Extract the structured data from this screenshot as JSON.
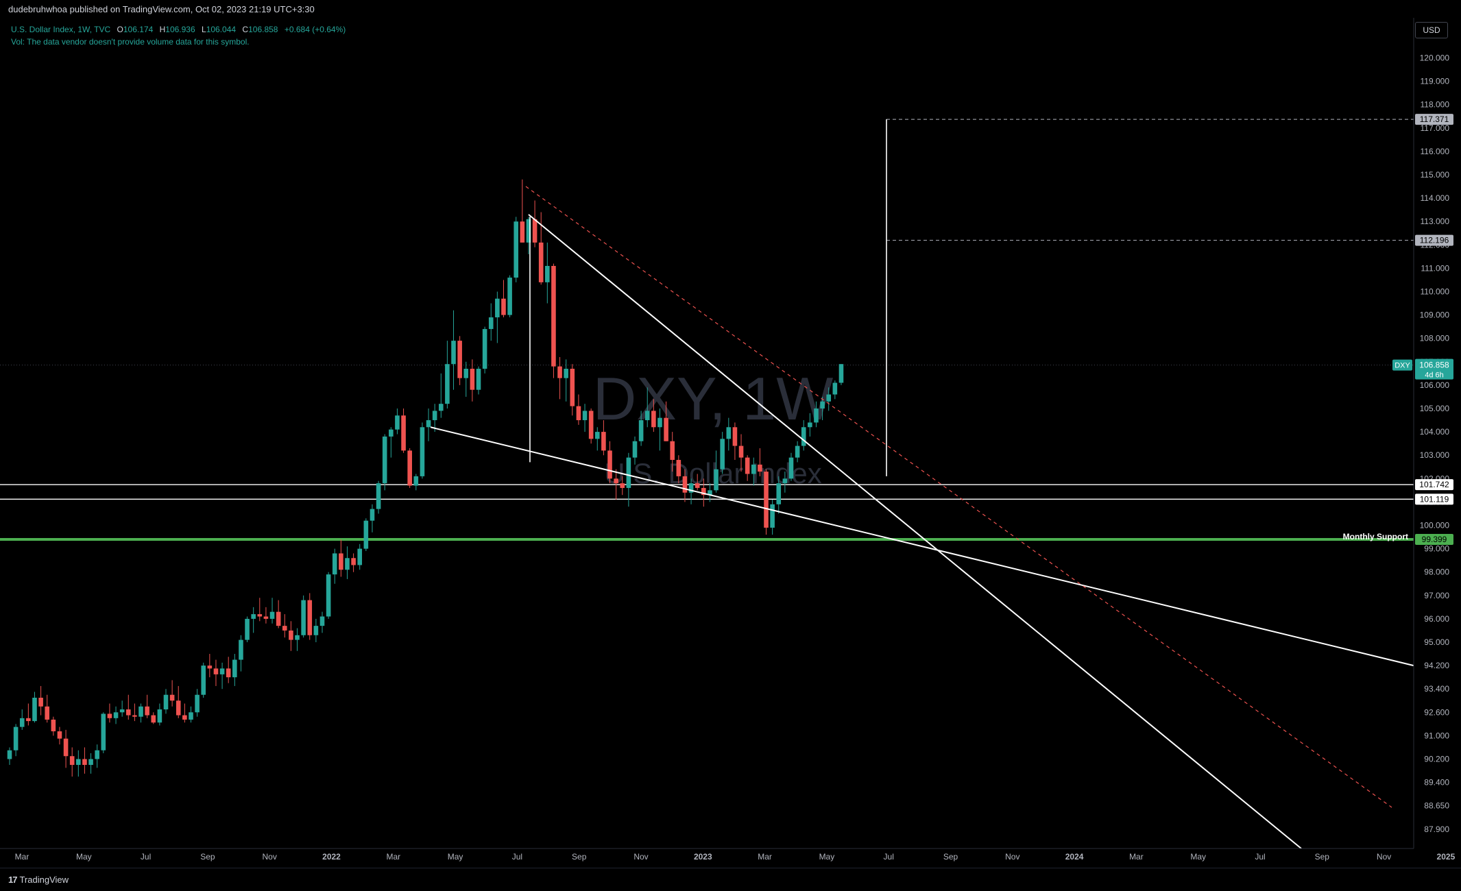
{
  "topbar": {
    "publisher": "dudebruhwhoa published on TradingView.com, Oct 02, 2023 21:19 UTC+3:30"
  },
  "legend": {
    "symbol": "U.S. Dollar Index, 1W, TVC",
    "open_label": "O",
    "open": "106.174",
    "high_label": "H",
    "high": "106.936",
    "low_label": "L",
    "low": "106.044",
    "close_label": "C",
    "close": "106.858",
    "change": "+0.684 (+0.64%)",
    "vol_note": "Vol: The data vendor doesn't provide volume data for this symbol."
  },
  "watermark": {
    "main": "DXY, 1W",
    "sub": "U.S. Dollar Index"
  },
  "currency_button": "USD",
  "footer": {
    "logo_text": "TradingView",
    "logo_mark": "17"
  },
  "colors": {
    "up": "#26a69a",
    "down": "#ef5350",
    "support": "#4caf50",
    "accent": "#26a69a"
  },
  "chart_data": {
    "type": "candlestick",
    "x_ticks": [
      "Mar",
      "May",
      "Jul",
      "Sep",
      "Nov",
      "2022",
      "Mar",
      "May",
      "Jul",
      "Sep",
      "Nov",
      "2023",
      "Mar",
      "May",
      "Jul",
      "Sep",
      "Nov",
      "2024",
      "Mar",
      "May",
      "Jul",
      "Sep",
      "Nov",
      "2025"
    ],
    "y_ticks": [
      "120.000",
      "119.000",
      "118.000",
      "117.000",
      "116.000",
      "115.000",
      "114.000",
      "113.000",
      "112.000",
      "111.000",
      "110.000",
      "109.000",
      "108.000",
      "107.000",
      "106.000",
      "105.000",
      "104.000",
      "103.000",
      "102.000",
      "101.000",
      "100.000",
      "99.000",
      "98.000",
      "97.000",
      "96.000",
      "95.000",
      "94.200",
      "93.400",
      "92.600",
      "91.000",
      "90.200",
      "89.400",
      "88.650",
      "87.900"
    ],
    "current_price": {
      "symbol": "DXY",
      "value": "106.858",
      "countdown": "4d 6h"
    },
    "price_labels": [
      "117.371",
      "112.196",
      "101.742",
      "101.119",
      "99.399"
    ],
    "annotation": "Monthly Support",
    "candles": [
      [
        90.2,
        90.6,
        90.0,
        90.5
      ],
      [
        90.5,
        91.8,
        90.3,
        91.6
      ],
      [
        91.6,
        92.7,
        91.4,
        92.2
      ],
      [
        92.2,
        92.9,
        91.7,
        92.0
      ],
      [
        92.0,
        93.3,
        91.9,
        93.1
      ],
      [
        93.1,
        93.5,
        92.4,
        92.8
      ],
      [
        92.8,
        93.2,
        91.9,
        92.1
      ],
      [
        92.1,
        92.3,
        91.0,
        91.3
      ],
      [
        91.3,
        91.6,
        90.7,
        90.9
      ],
      [
        90.9,
        91.4,
        89.9,
        90.3
      ],
      [
        90.3,
        90.6,
        89.6,
        90.0
      ],
      [
        90.0,
        90.5,
        89.6,
        90.2
      ],
      [
        90.2,
        90.6,
        89.7,
        90.0
      ],
      [
        90.0,
        90.4,
        89.7,
        90.2
      ],
      [
        90.2,
        90.7,
        89.9,
        90.5
      ],
      [
        90.5,
        92.6,
        90.4,
        92.5
      ],
      [
        92.5,
        92.9,
        91.9,
        92.2
      ],
      [
        92.2,
        92.8,
        91.8,
        92.6
      ],
      [
        92.6,
        93.0,
        92.3,
        92.7
      ],
      [
        92.7,
        93.2,
        92.1,
        92.4
      ],
      [
        92.4,
        92.9,
        92.0,
        92.3
      ],
      [
        92.3,
        92.9,
        91.9,
        92.8
      ],
      [
        92.8,
        93.2,
        92.2,
        92.4
      ],
      [
        92.4,
        92.6,
        91.8,
        91.9
      ],
      [
        91.9,
        92.9,
        91.7,
        92.7
      ],
      [
        92.7,
        93.4,
        92.5,
        93.2
      ],
      [
        93.2,
        93.7,
        92.8,
        93.0
      ],
      [
        93.0,
        93.5,
        92.2,
        92.4
      ],
      [
        92.4,
        92.9,
        91.9,
        92.1
      ],
      [
        92.1,
        92.8,
        91.9,
        92.6
      ],
      [
        92.6,
        93.4,
        92.3,
        93.2
      ],
      [
        93.2,
        94.3,
        93.1,
        94.2
      ],
      [
        94.2,
        94.6,
        93.8,
        94.1
      ],
      [
        94.1,
        94.4,
        93.5,
        93.9
      ],
      [
        93.9,
        94.3,
        93.4,
        94.1
      ],
      [
        94.1,
        94.5,
        93.6,
        93.8
      ],
      [
        93.8,
        94.6,
        93.5,
        94.4
      ],
      [
        94.4,
        95.3,
        94.0,
        95.1
      ],
      [
        95.1,
        96.1,
        95.0,
        96.0
      ],
      [
        96.0,
        96.5,
        95.4,
        96.2
      ],
      [
        96.2,
        96.9,
        95.9,
        96.1
      ],
      [
        96.1,
        96.5,
        95.8,
        96.0
      ],
      [
        96.0,
        96.9,
        95.8,
        96.3
      ],
      [
        96.3,
        96.8,
        95.6,
        95.7
      ],
      [
        95.7,
        96.2,
        95.2,
        95.5
      ],
      [
        95.5,
        95.9,
        94.7,
        95.1
      ],
      [
        95.1,
        95.6,
        94.7,
        95.3
      ],
      [
        95.3,
        97.0,
        95.2,
        96.8
      ],
      [
        96.8,
        97.1,
        95.1,
        95.3
      ],
      [
        95.3,
        96.0,
        95.0,
        95.7
      ],
      [
        95.7,
        96.3,
        95.4,
        96.1
      ],
      [
        96.1,
        98.0,
        96.0,
        97.9
      ],
      [
        97.9,
        99.0,
        97.5,
        98.8
      ],
      [
        98.8,
        99.4,
        97.8,
        98.1
      ],
      [
        98.1,
        99.1,
        97.7,
        98.6
      ],
      [
        98.6,
        98.8,
        98.0,
        98.3
      ],
      [
        98.3,
        99.2,
        98.1,
        99.0
      ],
      [
        99.0,
        100.3,
        98.9,
        100.2
      ],
      [
        100.2,
        100.9,
        99.7,
        100.7
      ],
      [
        100.7,
        101.9,
        100.5,
        101.8
      ],
      [
        101.8,
        103.9,
        101.5,
        103.8
      ],
      [
        103.8,
        104.2,
        102.9,
        104.1
      ],
      [
        104.1,
        105.0,
        103.9,
        104.7
      ],
      [
        104.7,
        105.0,
        103.1,
        103.2
      ],
      [
        103.2,
        103.3,
        101.6,
        101.7
      ],
      [
        101.7,
        102.2,
        101.5,
        102.1
      ],
      [
        102.1,
        104.4,
        102.0,
        104.2
      ],
      [
        104.2,
        105.0,
        103.6,
        104.5
      ],
      [
        104.5,
        105.2,
        104.0,
        104.9
      ],
      [
        104.9,
        106.5,
        104.6,
        105.2
      ],
      [
        105.2,
        107.9,
        105.0,
        106.9
      ],
      [
        106.9,
        109.2,
        105.8,
        107.9
      ],
      [
        107.9,
        108.1,
        106.0,
        106.3
      ],
      [
        106.3,
        107.0,
        105.5,
        106.7
      ],
      [
        106.7,
        107.1,
        105.3,
        105.8
      ],
      [
        105.8,
        106.8,
        105.6,
        106.7
      ],
      [
        106.7,
        108.5,
        106.5,
        108.4
      ],
      [
        108.4,
        109.5,
        107.9,
        108.9
      ],
      [
        108.9,
        110.0,
        107.8,
        109.7
      ],
      [
        109.7,
        110.5,
        108.9,
        109.0
      ],
      [
        109.0,
        110.7,
        108.9,
        110.6
      ],
      [
        110.6,
        113.2,
        110.4,
        113.0
      ],
      [
        113.0,
        114.8,
        112.1,
        112.1
      ],
      [
        112.1,
        113.2,
        111.6,
        113.1
      ],
      [
        113.1,
        113.9,
        111.9,
        112.1
      ],
      [
        112.1,
        113.4,
        110.3,
        110.4
      ],
      [
        110.4,
        112.1,
        109.5,
        111.1
      ],
      [
        111.1,
        111.2,
        106.3,
        106.8
      ],
      [
        106.8,
        107.2,
        105.4,
        106.3
      ],
      [
        106.3,
        107.1,
        105.3,
        106.7
      ],
      [
        106.7,
        106.9,
        104.7,
        105.1
      ],
      [
        105.1,
        105.6,
        104.3,
        104.5
      ],
      [
        104.5,
        105.2,
        104.0,
        104.9
      ],
      [
        104.9,
        105.0,
        103.5,
        103.7
      ],
      [
        103.7,
        104.2,
        103.2,
        104.0
      ],
      [
        104.0,
        104.5,
        103.0,
        103.2
      ],
      [
        103.2,
        103.6,
        101.8,
        102.0
      ],
      [
        102.0,
        102.4,
        101.1,
        101.8
      ],
      [
        101.8,
        102.1,
        101.3,
        101.6
      ],
      [
        101.6,
        103.1,
        100.8,
        102.9
      ],
      [
        102.9,
        103.8,
        102.6,
        103.6
      ],
      [
        103.6,
        104.9,
        103.4,
        104.5
      ],
      [
        104.5,
        105.9,
        104.2,
        104.9
      ],
      [
        104.9,
        105.4,
        104.0,
        104.2
      ],
      [
        104.2,
        105.0,
        103.2,
        104.6
      ],
      [
        104.6,
        105.3,
        103.6,
        103.6
      ],
      [
        103.6,
        104.0,
        102.3,
        102.8
      ],
      [
        102.8,
        103.0,
        101.8,
        102.1
      ],
      [
        102.1,
        102.4,
        101.0,
        101.4
      ],
      [
        101.4,
        102.0,
        100.9,
        101.8
      ],
      [
        101.8,
        102.2,
        101.5,
        101.6
      ],
      [
        101.6,
        102.0,
        100.8,
        101.3
      ],
      [
        101.3,
        101.8,
        101.0,
        101.5
      ],
      [
        101.5,
        103.2,
        101.4,
        102.4
      ],
      [
        102.4,
        104.0,
        102.2,
        103.7
      ],
      [
        103.7,
        104.6,
        103.2,
        104.2
      ],
      [
        104.2,
        104.4,
        102.8,
        103.4
      ],
      [
        103.4,
        103.9,
        102.3,
        102.9
      ],
      [
        102.9,
        103.0,
        101.9,
        102.2
      ],
      [
        102.2,
        102.9,
        101.7,
        102.6
      ],
      [
        102.6,
        103.3,
        102.1,
        102.3
      ],
      [
        102.3,
        102.4,
        99.6,
        99.9
      ],
      [
        99.9,
        101.1,
        99.6,
        100.9
      ],
      [
        100.9,
        102.1,
        100.5,
        101.8
      ],
      [
        101.8,
        102.3,
        101.4,
        102.0
      ],
      [
        102.0,
        103.1,
        101.9,
        102.9
      ],
      [
        102.9,
        103.6,
        102.7,
        103.4
      ],
      [
        103.4,
        104.5,
        103.2,
        104.2
      ],
      [
        104.2,
        104.8,
        103.8,
        104.4
      ],
      [
        104.4,
        105.3,
        104.2,
        105.0
      ],
      [
        105.0,
        105.5,
        104.5,
        105.3
      ],
      [
        105.3,
        105.9,
        104.9,
        105.6
      ],
      [
        105.6,
        106.2,
        105.4,
        106.1
      ],
      [
        106.1,
        106.9,
        106.0,
        106.9
      ]
    ]
  }
}
